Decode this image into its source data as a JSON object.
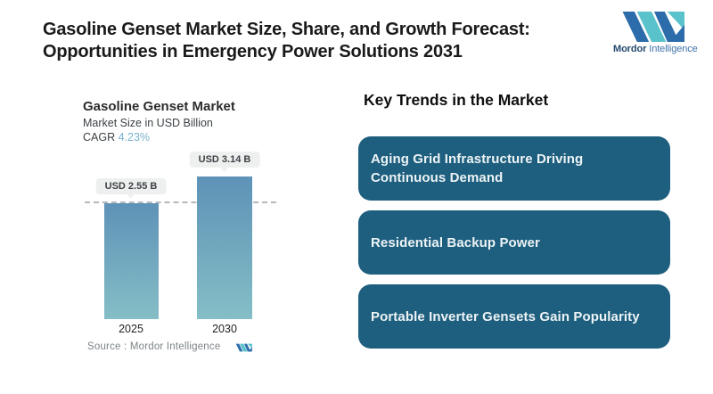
{
  "header": {
    "title": "Gasoline Genset Market Size, Share, and Growth Forecast: Opportunities in Emergency Power Solutions 2031",
    "logo": {
      "brand_bold": "Mordor",
      "brand_light": " Intelligence"
    }
  },
  "chart": {
    "title": "Gasoline Genset Market",
    "subtitle": "Market Size in USD Billion",
    "cagr_label": "CAGR ",
    "cagr_value": "4.23%",
    "source_label": "Source :  ",
    "source_value": "Mordor Intelligence"
  },
  "chart_data": {
    "type": "bar",
    "title": "Gasoline Genset Market",
    "subtitle": "Market Size in USD Billion",
    "cagr": "4.23%",
    "categories": [
      "2025",
      "2030"
    ],
    "values": [
      2.55,
      3.14
    ],
    "value_labels": [
      "USD 2.55 B",
      "USD 3.14 B"
    ],
    "ylabel": "Market Size in USD Billion",
    "ylim": [
      0,
      3.14
    ],
    "grid": false,
    "annotations": [
      "dashed reference line at 2025 value level"
    ],
    "source": "Source : Mordor Intelligence"
  },
  "trends": {
    "heading": "Key Trends in the Market",
    "items": [
      "Aging Grid Infrastructure Driving Continuous Demand",
      "Residential Backup Power",
      "Portable Inverter Gensets Gain Popularity"
    ]
  },
  "colors": {
    "trend_box": "#1e5e7e",
    "bar_top": "#5e92b7",
    "bar_bottom": "#85bec6",
    "cagr_accent": "#79b2cd",
    "logo_navy": "#2d6cab",
    "logo_teal": "#59c2cb",
    "pill_bg": "#eef0f0",
    "dash_line": "#b4babd"
  }
}
